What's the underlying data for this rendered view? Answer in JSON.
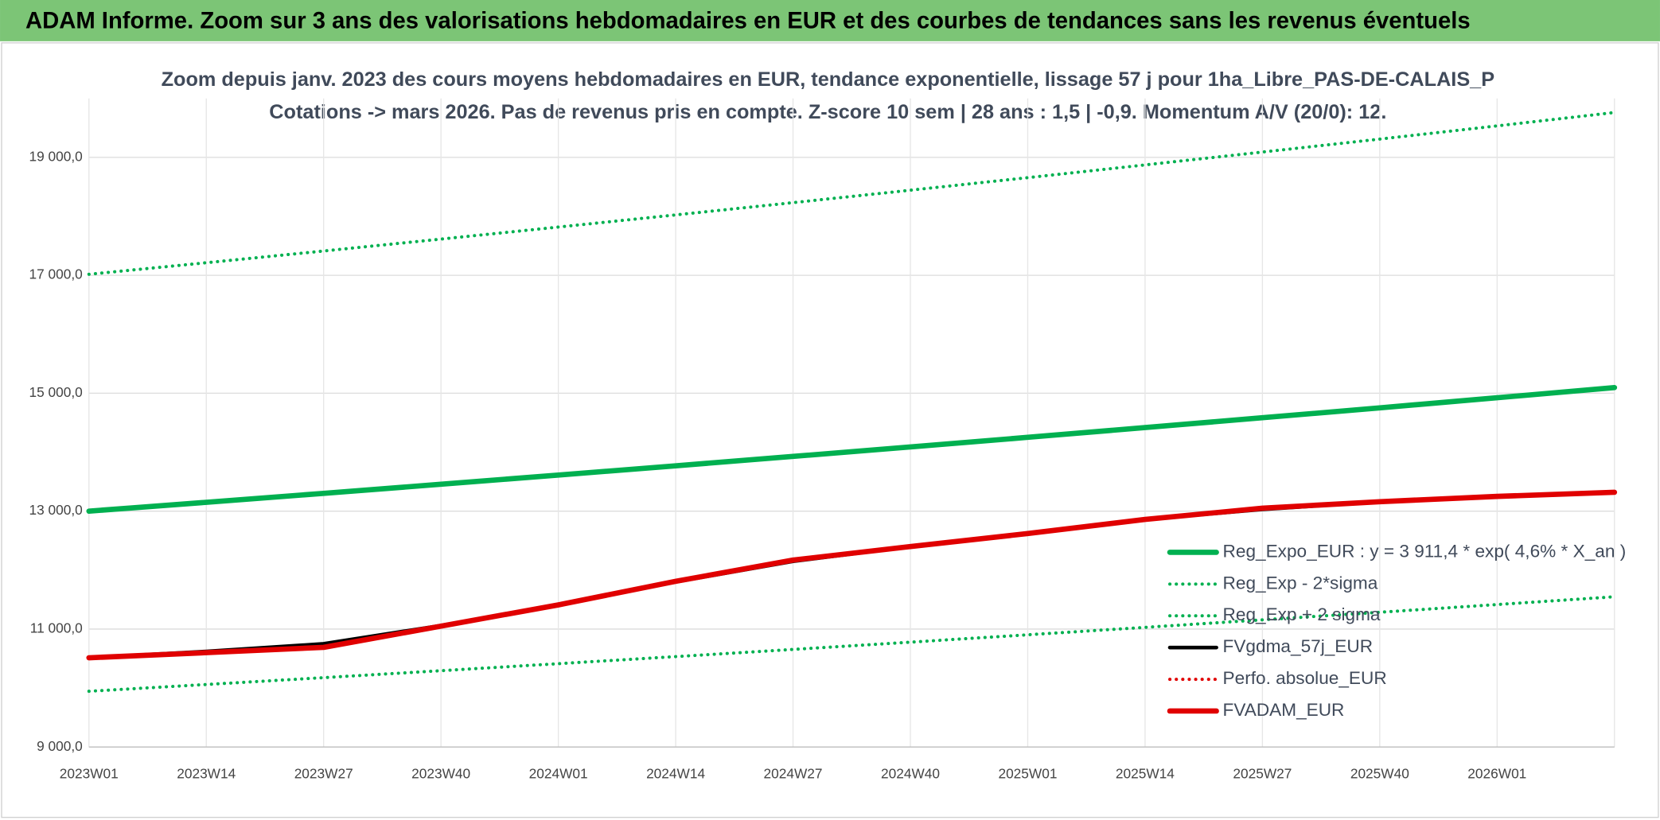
{
  "header": {
    "title": "ADAM Informe. Zoom sur 3 ans des valorisations hebdomadaires en EUR et des courbes de tendances sans les revenus éventuels"
  },
  "chart_data": {
    "type": "line",
    "title": "Zoom depuis janv. 2023 des cours moyens hebdomadaires en EUR, tendance exponentielle, lissage 57 j pour 1ha_Libre_PAS-DE-CALAIS_P",
    "subtitle": "Cotations -> mars 2026. Pas de revenus pris en compte. Z-score 10 sem | 28 ans : 1,5 | -0,9. Momentum A/V (20/0): 12.",
    "categories": [
      "2023W01",
      "2023W14",
      "2023W27",
      "2023W40",
      "2024W01",
      "2024W14",
      "2024W27",
      "2024W40",
      "2025W01",
      "2025W14",
      "2025W27",
      "2025W40",
      "2026W01",
      null
    ],
    "ylim": [
      9000,
      20000
    ],
    "yticks": [
      {
        "value": 9000,
        "label": "9 000,0"
      },
      {
        "value": 11000,
        "label": "11 000,0"
      },
      {
        "value": 13000,
        "label": "13 000,0"
      },
      {
        "value": 15000,
        "label": "15 000,0"
      },
      {
        "value": 17000,
        "label": "17 000,0"
      },
      {
        "value": 19000,
        "label": "19 000,0"
      }
    ],
    "grid": true,
    "legend": "lower-right",
    "series": [
      {
        "name": "Reg_Expo_EUR : y = 3 911,4 * exp( 4,6% *  X_an )",
        "color": "#00b050",
        "line_style": "solid",
        "values": [
          13000,
          13150,
          13302,
          13456,
          13612,
          13769,
          13928,
          14089,
          14252,
          14417,
          14584,
          14752,
          14923,
          15096
        ]
      },
      {
        "name": "Reg_Exp - 2*sigma",
        "color": "#00b050",
        "line_style": "dotted",
        "values": [
          17017,
          17213,
          17412,
          17614,
          17818,
          18024,
          18232,
          18443,
          18656,
          18872,
          19090,
          19310,
          19534,
          19761
        ]
      },
      {
        "name": "Reg_Exp + 2 sigma",
        "color": "#00b050",
        "line_style": "dotted",
        "values": [
          9945,
          10060,
          10176,
          10294,
          10413,
          10533,
          10655,
          10778,
          10903,
          11029,
          11157,
          11285,
          11416,
          11548
        ]
      },
      {
        "name": "FVgdma_57j_EUR",
        "color": "#000000",
        "line_style": "solid",
        "values": [
          10513,
          10620,
          10750,
          11060,
          11410,
          11800,
          12150,
          12400,
          12620,
          12860,
          13030,
          13160,
          13250,
          13320
        ]
      },
      {
        "name": "Perfo. absolue_EUR",
        "color": "#e00000",
        "line_style": "dotted",
        "values": [
          10513,
          10600,
          10690,
          11050,
          11410,
          11810,
          12170,
          12400,
          12620,
          12860,
          13050,
          13160,
          13250,
          13320
        ]
      },
      {
        "name": "FVADAM_EUR",
        "color": "#e00000",
        "line_style": "solid",
        "values": [
          10513,
          10600,
          10690,
          11050,
          11410,
          11810,
          12170,
          12400,
          12620,
          12860,
          13050,
          13160,
          13250,
          13320
        ]
      }
    ]
  }
}
